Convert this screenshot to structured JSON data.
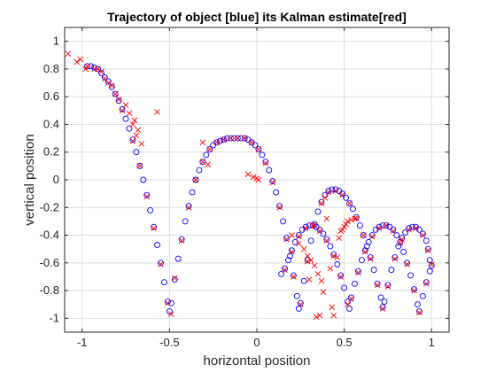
{
  "chart_data": {
    "type": "scatter",
    "title": "Trajectory of object [blue] its Kalman estimate[red]",
    "xlabel": "horizontal position",
    "ylabel": "vertical position",
    "xlim": [
      -1.1,
      1.1
    ],
    "ylim": [
      -1.1,
      1.1
    ],
    "xticks": [
      -1,
      -0.5,
      0,
      0.5,
      1
    ],
    "xtick_labels": [
      "-1",
      "-0.5",
      "0",
      "0.5",
      "1"
    ],
    "yticks": [
      -1,
      -0.8,
      -0.6,
      -0.4,
      -0.2,
      0,
      0.2,
      0.4,
      0.6,
      0.8,
      1
    ],
    "ytick_labels": [
      "-1",
      "-0.8",
      "-0.6",
      "-0.4",
      "-0.2",
      "0",
      "0.2",
      "0.4",
      "0.6",
      "0.8",
      "1"
    ],
    "grid": true,
    "colors": {
      "trajectory": "#0000ff",
      "estimate": "#ff0000",
      "grid": "#dedede",
      "axis": "#262626"
    },
    "series": [
      {
        "marker": "circle",
        "color": "#0000ff",
        "points": [
          [
            -0.97,
            0.82
          ],
          [
            -0.95,
            0.82
          ],
          [
            -0.93,
            0.81
          ],
          [
            -0.91,
            0.8
          ],
          [
            -0.89,
            0.77
          ],
          [
            -0.87,
            0.74
          ],
          [
            -0.85,
            0.71
          ],
          [
            -0.83,
            0.67
          ],
          [
            -0.81,
            0.62
          ],
          [
            -0.79,
            0.57
          ],
          [
            -0.77,
            0.51
          ],
          [
            -0.75,
            0.44
          ],
          [
            -0.73,
            0.37
          ],
          [
            -0.71,
            0.29
          ],
          [
            -0.69,
            0.2
          ],
          [
            -0.67,
            0.1
          ],
          [
            -0.65,
            0.0
          ],
          [
            -0.63,
            -0.11
          ],
          [
            -0.61,
            -0.22
          ],
          [
            -0.59,
            -0.34
          ],
          [
            -0.57,
            -0.47
          ],
          [
            -0.55,
            -0.6
          ],
          [
            -0.53,
            -0.74
          ],
          [
            -0.51,
            -0.88
          ],
          [
            -0.5,
            -0.95
          ],
          [
            -0.49,
            -0.89
          ],
          [
            -0.47,
            -0.72
          ],
          [
            -0.45,
            -0.57
          ],
          [
            -0.43,
            -0.43
          ],
          [
            -0.41,
            -0.3
          ],
          [
            -0.39,
            -0.19
          ],
          [
            -0.37,
            -0.09
          ],
          [
            -0.35,
            0.0
          ],
          [
            -0.33,
            0.07
          ],
          [
            -0.31,
            0.13
          ],
          [
            -0.29,
            0.18
          ],
          [
            -0.27,
            0.22
          ],
          [
            -0.25,
            0.25
          ],
          [
            -0.23,
            0.27
          ],
          [
            -0.21,
            0.28
          ],
          [
            -0.19,
            0.29
          ],
          [
            -0.17,
            0.3
          ],
          [
            -0.15,
            0.3
          ],
          [
            -0.13,
            0.3
          ],
          [
            -0.11,
            0.3
          ],
          [
            -0.09,
            0.3
          ],
          [
            -0.07,
            0.3
          ],
          [
            -0.05,
            0.29
          ],
          [
            -0.03,
            0.27
          ],
          [
            -0.01,
            0.25
          ],
          [
            0.01,
            0.22
          ],
          [
            0.03,
            0.18
          ],
          [
            0.05,
            0.13
          ],
          [
            0.07,
            0.07
          ],
          [
            0.09,
            -0.01
          ],
          [
            0.11,
            -0.09
          ],
          [
            0.13,
            -0.19
          ],
          [
            0.15,
            -0.3
          ],
          [
            0.17,
            -0.42
          ],
          [
            0.19,
            -0.55
          ],
          [
            0.21,
            -0.69
          ],
          [
            0.23,
            -0.84
          ],
          [
            0.24,
            -0.93
          ],
          [
            0.25,
            -0.89
          ],
          [
            0.27,
            -0.73
          ],
          [
            0.29,
            -0.58
          ],
          [
            0.31,
            -0.44
          ],
          [
            0.33,
            -0.32
          ],
          [
            0.35,
            -0.23
          ],
          [
            0.37,
            -0.16
          ],
          [
            0.39,
            -0.11
          ],
          [
            0.41,
            -0.08
          ],
          [
            0.43,
            -0.07
          ],
          [
            0.45,
            -0.07
          ],
          [
            0.47,
            -0.08
          ],
          [
            0.49,
            -0.1
          ],
          [
            0.51,
            -0.13
          ],
          [
            0.53,
            -0.17
          ],
          [
            0.55,
            -0.21
          ],
          [
            0.57,
            -0.27
          ],
          [
            0.59,
            -0.33
          ],
          [
            0.61,
            -0.4
          ],
          [
            0.63,
            -0.48
          ],
          [
            0.65,
            -0.56
          ],
          [
            0.67,
            -0.65
          ],
          [
            0.69,
            -0.75
          ],
          [
            0.71,
            -0.85
          ],
          [
            0.72,
            -0.92
          ],
          [
            0.73,
            -0.88
          ],
          [
            0.75,
            -0.76
          ],
          [
            0.77,
            -0.65
          ],
          [
            0.79,
            -0.56
          ],
          [
            0.81,
            -0.48
          ],
          [
            0.83,
            -0.42
          ],
          [
            0.85,
            -0.38
          ],
          [
            0.87,
            -0.35
          ],
          [
            0.89,
            -0.34
          ],
          [
            0.91,
            -0.34
          ],
          [
            0.93,
            -0.36
          ],
          [
            0.95,
            -0.39
          ],
          [
            0.97,
            -0.44
          ],
          [
            0.98,
            -0.5
          ],
          [
            0.99,
            -0.58
          ],
          [
            1.0,
            -0.62
          ],
          [
            0.99,
            -0.66
          ],
          [
            0.97,
            -0.74
          ],
          [
            0.95,
            -0.84
          ],
          [
            0.93,
            -0.95
          ],
          [
            0.92,
            -0.9
          ],
          [
            0.9,
            -0.79
          ],
          [
            0.88,
            -0.69
          ],
          [
            0.86,
            -0.6
          ],
          [
            0.84,
            -0.52
          ],
          [
            0.82,
            -0.45
          ],
          [
            0.8,
            -0.4
          ],
          [
            0.78,
            -0.36
          ],
          [
            0.76,
            -0.34
          ],
          [
            0.74,
            -0.33
          ],
          [
            0.72,
            -0.33
          ],
          [
            0.7,
            -0.34
          ],
          [
            0.68,
            -0.36
          ],
          [
            0.66,
            -0.4
          ],
          [
            0.64,
            -0.45
          ],
          [
            0.62,
            -0.51
          ],
          [
            0.6,
            -0.58
          ],
          [
            0.58,
            -0.66
          ],
          [
            0.56,
            -0.75
          ],
          [
            0.54,
            -0.85
          ],
          [
            0.53,
            -0.93
          ],
          [
            0.52,
            -0.88
          ],
          [
            0.5,
            -0.78
          ],
          [
            0.48,
            -0.69
          ],
          [
            0.46,
            -0.61
          ],
          [
            0.44,
            -0.54
          ],
          [
            0.42,
            -0.48
          ],
          [
            0.4,
            -0.43
          ],
          [
            0.38,
            -0.39
          ],
          [
            0.36,
            -0.36
          ],
          [
            0.34,
            -0.34
          ],
          [
            0.32,
            -0.33
          ],
          [
            0.3,
            -0.33
          ],
          [
            0.28,
            -0.34
          ],
          [
            0.26,
            -0.36
          ],
          [
            0.24,
            -0.4
          ],
          [
            0.22,
            -0.45
          ],
          [
            0.2,
            -0.51
          ],
          [
            0.18,
            -0.58
          ],
          [
            0.16,
            -0.64
          ],
          [
            0.14,
            -0.68
          ]
        ]
      },
      {
        "marker": "x",
        "color": "#ff0000",
        "points": [
          [
            -1.08,
            0.91
          ],
          [
            -1.03,
            0.85
          ],
          [
            -1.01,
            0.87
          ],
          [
            -0.98,
            0.8
          ],
          [
            -0.91,
            0.8
          ],
          [
            -0.83,
            0.68
          ],
          [
            -0.79,
            0.58
          ],
          [
            -0.75,
            0.54
          ],
          [
            -0.73,
            0.48
          ],
          [
            -0.7,
            0.43
          ],
          [
            -0.71,
            0.4
          ],
          [
            -0.68,
            0.36
          ],
          [
            -0.69,
            0.32
          ],
          [
            -0.66,
            0.26
          ],
          [
            -0.57,
            0.49
          ],
          [
            -0.31,
            0.27
          ],
          [
            -0.28,
            0.11
          ],
          [
            -0.05,
            0.04
          ],
          [
            -0.02,
            0.02
          ],
          [
            0.0,
            0.01
          ],
          [
            0.01,
            0.0
          ],
          [
            -0.97,
            0.82
          ],
          [
            -0.93,
            0.8
          ],
          [
            -0.89,
            0.78
          ],
          [
            -0.87,
            0.73
          ],
          [
            -0.85,
            0.7
          ],
          [
            -0.81,
            0.62
          ],
          [
            -0.77,
            0.5
          ],
          [
            -0.71,
            0.28
          ],
          [
            -0.67,
            0.1
          ],
          [
            -0.63,
            -0.12
          ],
          [
            -0.59,
            -0.35
          ],
          [
            -0.55,
            -0.61
          ],
          [
            -0.51,
            -0.89
          ],
          [
            -0.49,
            -0.97
          ],
          [
            -0.47,
            -0.71
          ],
          [
            -0.43,
            -0.44
          ],
          [
            -0.39,
            -0.2
          ],
          [
            -0.35,
            0.0
          ],
          [
            -0.31,
            0.13
          ],
          [
            -0.27,
            0.22
          ],
          [
            -0.23,
            0.27
          ],
          [
            -0.19,
            0.29
          ],
          [
            -0.15,
            0.3
          ],
          [
            -0.11,
            0.3
          ],
          [
            -0.07,
            0.3
          ],
          [
            -0.03,
            0.27
          ],
          [
            0.01,
            0.22
          ],
          [
            0.05,
            0.12
          ],
          [
            0.09,
            -0.02
          ],
          [
            0.13,
            -0.2
          ],
          [
            0.17,
            -0.43
          ],
          [
            0.21,
            -0.7
          ],
          [
            0.25,
            -0.9
          ],
          [
            0.29,
            -0.59
          ],
          [
            0.33,
            -0.33
          ],
          [
            0.37,
            -0.17
          ],
          [
            0.39,
            -0.13
          ],
          [
            0.4,
            -0.28
          ],
          [
            0.41,
            -0.09
          ],
          [
            0.45,
            -0.08
          ],
          [
            0.49,
            -0.11
          ],
          [
            0.53,
            -0.17
          ],
          [
            0.57,
            -0.28
          ],
          [
            0.61,
            -0.4
          ],
          [
            0.65,
            -0.57
          ],
          [
            0.69,
            -0.76
          ],
          [
            0.72,
            -0.93
          ],
          [
            0.75,
            -0.77
          ],
          [
            0.79,
            -0.57
          ],
          [
            0.83,
            -0.43
          ],
          [
            0.87,
            -0.36
          ],
          [
            0.91,
            -0.35
          ],
          [
            0.95,
            -0.4
          ],
          [
            0.98,
            -0.51
          ],
          [
            1.0,
            -0.61
          ],
          [
            0.97,
            -0.75
          ],
          [
            0.93,
            -0.96
          ],
          [
            0.9,
            -0.8
          ],
          [
            0.86,
            -0.61
          ],
          [
            0.82,
            -0.46
          ],
          [
            0.78,
            -0.37
          ],
          [
            0.74,
            -0.33
          ],
          [
            0.7,
            -0.35
          ],
          [
            0.66,
            -0.41
          ],
          [
            0.62,
            -0.52
          ],
          [
            0.58,
            -0.67
          ],
          [
            0.54,
            -0.86
          ],
          [
            0.52,
            -0.9
          ],
          [
            0.48,
            -0.7
          ],
          [
            0.44,
            -0.55
          ],
          [
            0.4,
            -0.44
          ],
          [
            0.36,
            -0.37
          ],
          [
            0.32,
            -0.33
          ],
          [
            0.28,
            -0.35
          ],
          [
            0.24,
            -0.41
          ],
          [
            0.2,
            -0.52
          ],
          [
            0.16,
            -0.65
          ],
          [
            0.2,
            -0.4
          ],
          [
            0.24,
            -0.46
          ],
          [
            0.27,
            -0.5
          ],
          [
            0.29,
            -0.55
          ],
          [
            0.31,
            -0.58
          ],
          [
            0.33,
            -0.62
          ],
          [
            0.35,
            -0.68
          ],
          [
            0.37,
            -0.73
          ],
          [
            0.38,
            -0.81
          ],
          [
            0.36,
            -0.98
          ],
          [
            0.34,
            -0.99
          ],
          [
            0.3,
            -0.72
          ],
          [
            0.42,
            -0.64
          ],
          [
            0.43,
            -0.92
          ],
          [
            0.44,
            -0.98
          ],
          [
            0.46,
            -0.56
          ],
          [
            0.47,
            -0.42
          ],
          [
            0.48,
            -0.37
          ],
          [
            0.49,
            -0.36
          ],
          [
            0.5,
            -0.34
          ],
          [
            0.51,
            -0.32
          ],
          [
            0.52,
            -0.3
          ],
          [
            0.54,
            -0.29
          ],
          [
            0.56,
            -0.28
          ]
        ]
      }
    ]
  }
}
